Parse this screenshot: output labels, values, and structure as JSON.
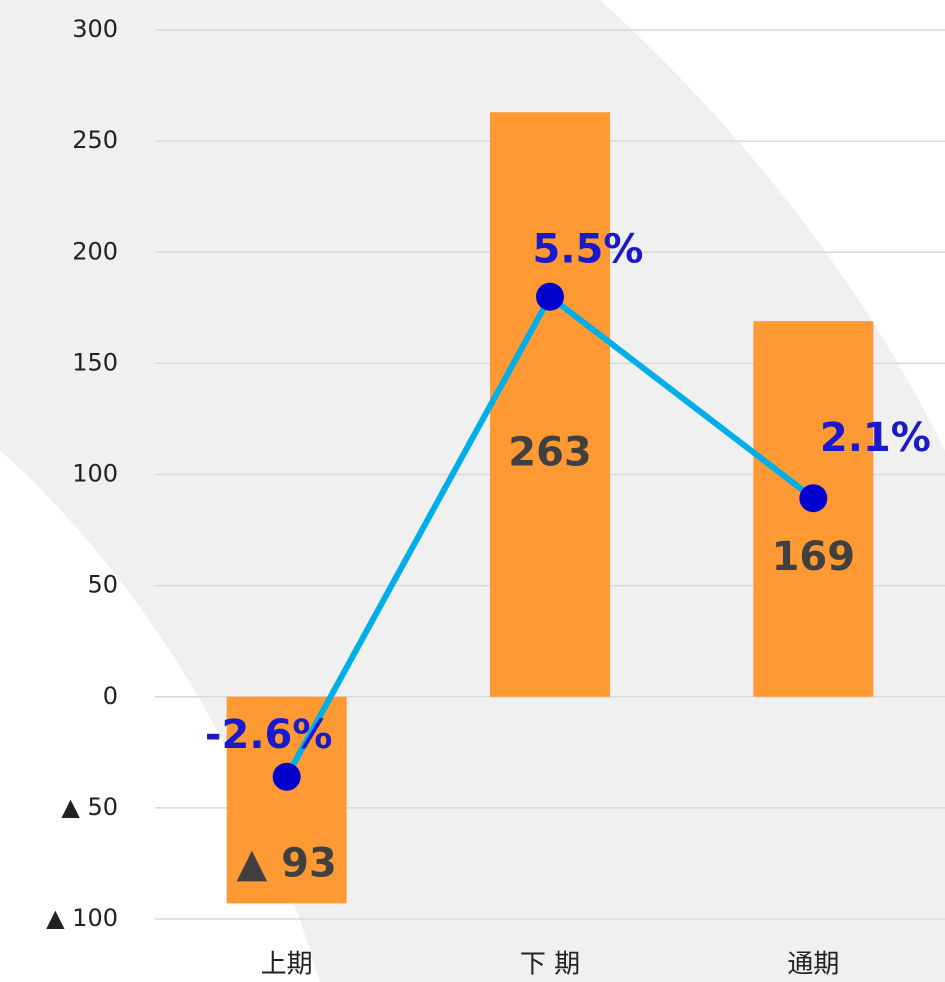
{
  "chart_data": {
    "type": "bar-line",
    "categories": [
      "上期",
      "下 期",
      "通期"
    ],
    "series": [
      {
        "type": "bar",
        "color": "#ff9933",
        "values": [
          -93,
          263,
          169
        ],
        "value_labels": [
          "▲ 93",
          "263",
          "169"
        ]
      },
      {
        "type": "line",
        "axis": "y2",
        "color": "#00aee8",
        "marker_color": "#0000cc",
        "values": [
          -2.6,
          5.5,
          2.1
        ],
        "value_labels": [
          "-2.6%",
          "5.5%",
          "2.1%"
        ]
      }
    ],
    "ylim": [
      -100,
      300
    ],
    "yticks": [
      {
        "value": -100,
        "label": "▲ 100"
      },
      {
        "value": -50,
        "label": "▲ 50"
      },
      0,
      50,
      100,
      150,
      200,
      250,
      300
    ],
    "y2lim": [
      -5,
      10
    ],
    "grid": true
  }
}
